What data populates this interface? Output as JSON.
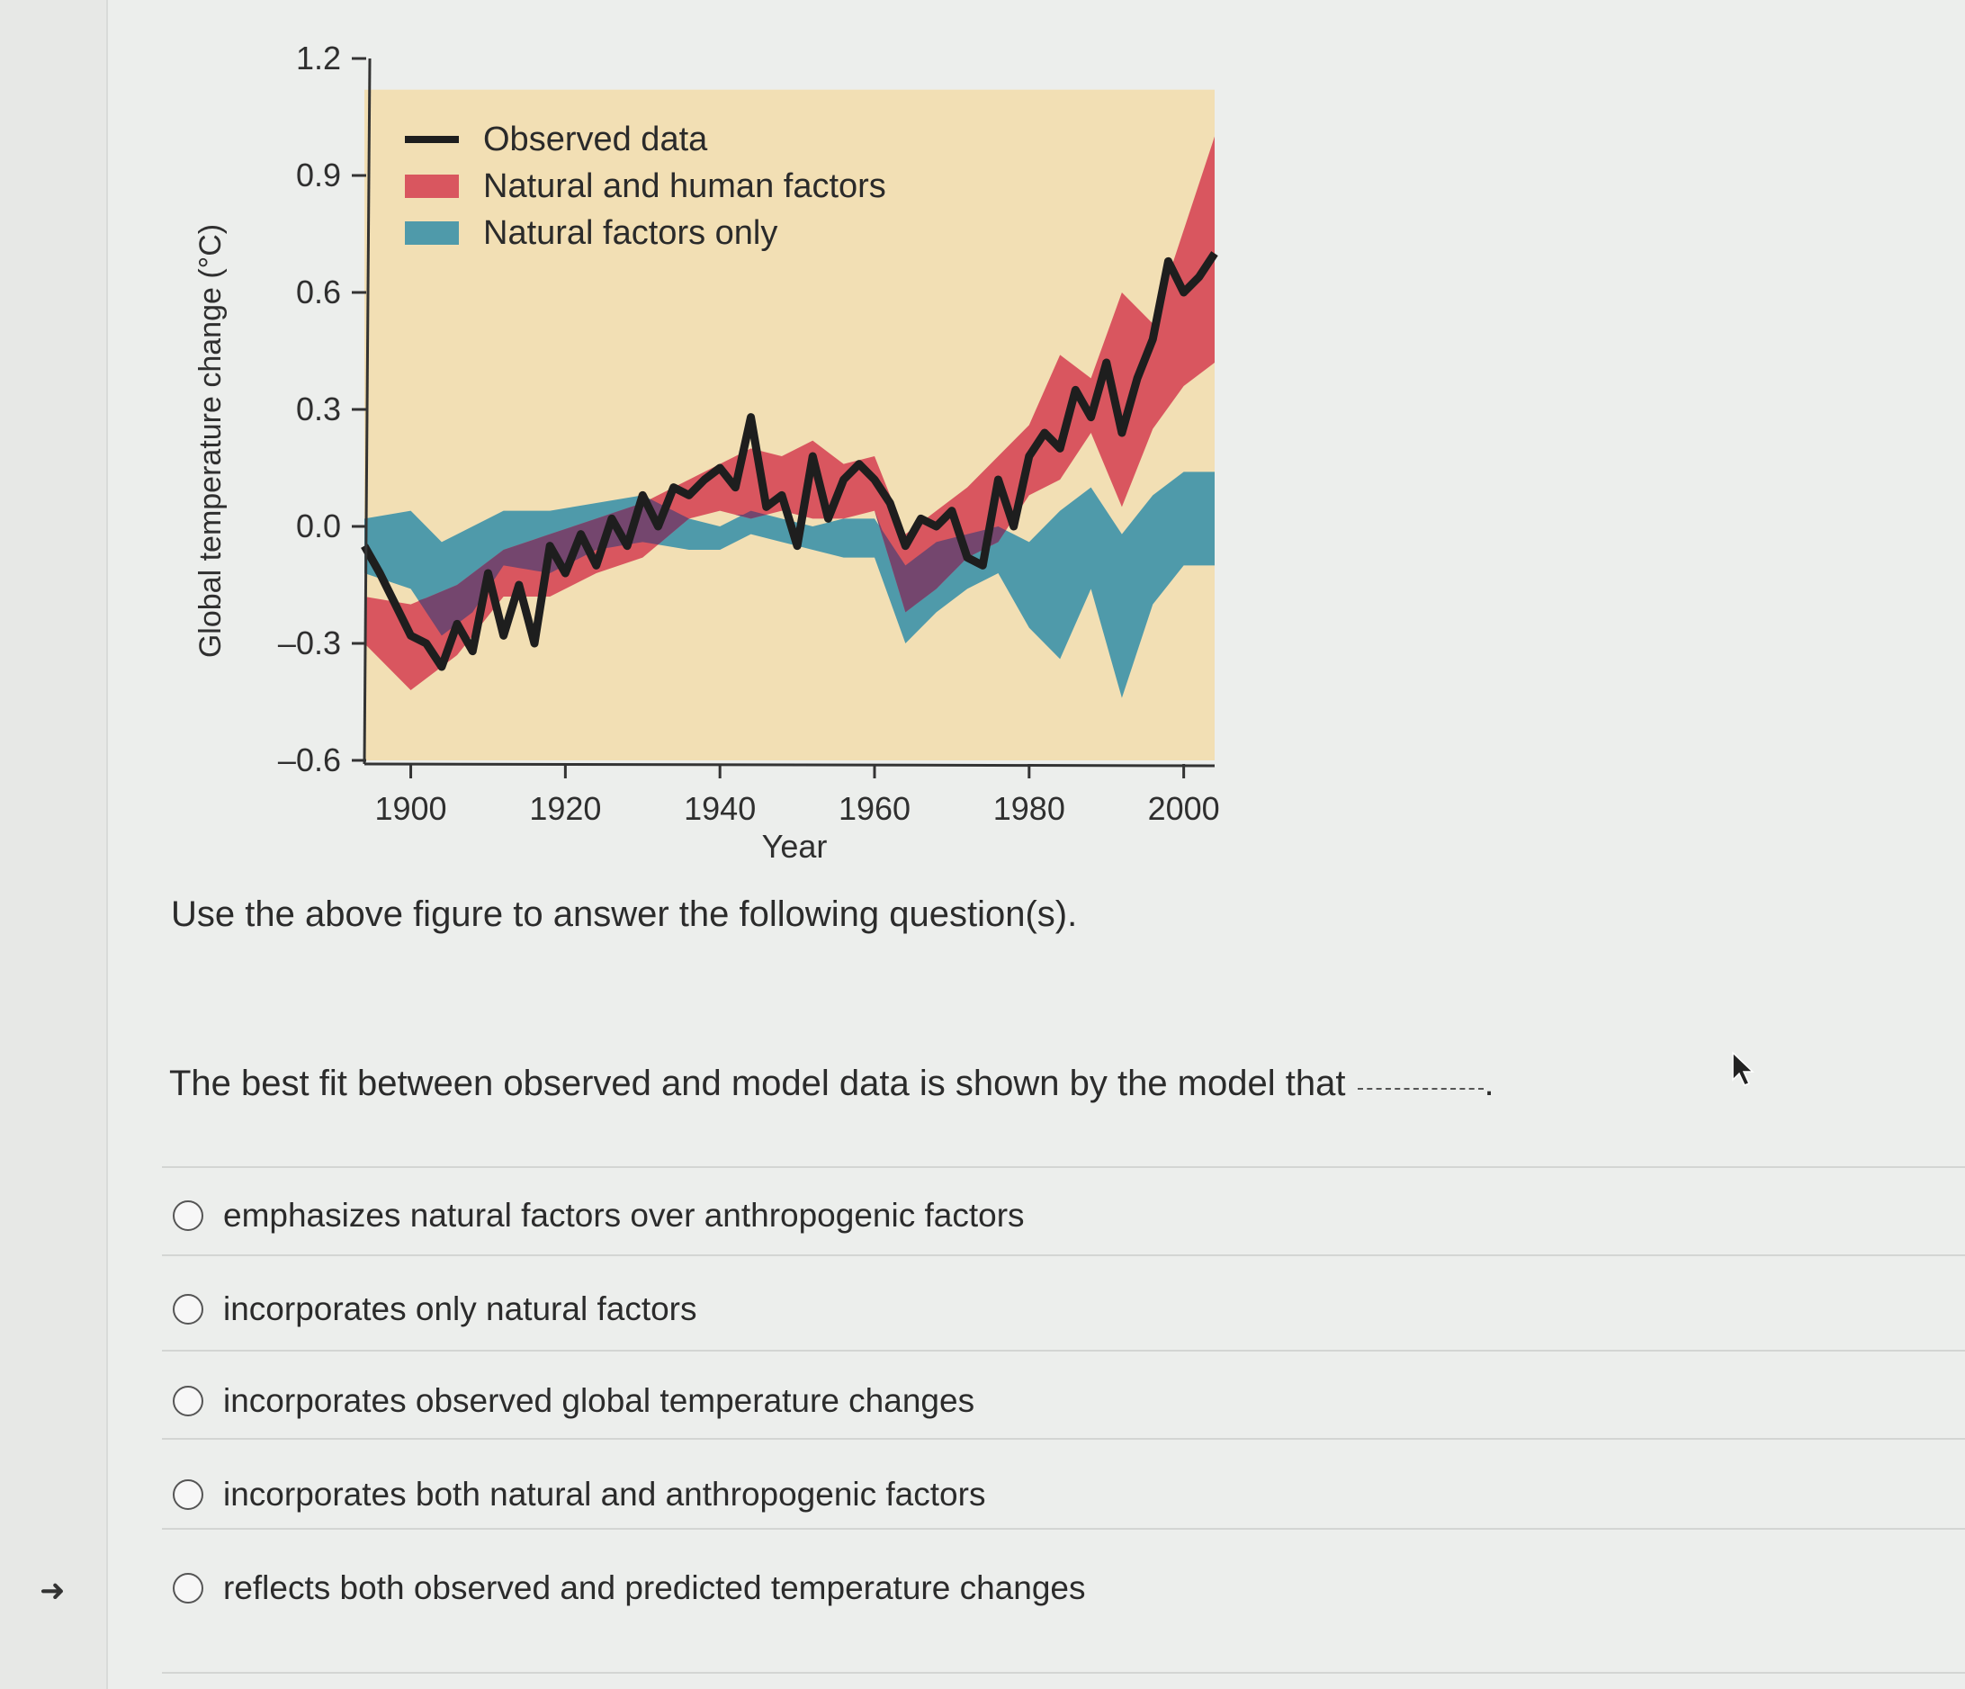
{
  "figure": {
    "chart_data": {
      "type": "line",
      "xlabel": "Year",
      "ylabel": "Global temperature change (°C)",
      "xlim": [
        1894,
        2004
      ],
      "ylim": [
        -0.6,
        1.2
      ],
      "x_ticks": [
        1900,
        1920,
        1940,
        1960,
        1980,
        2000
      ],
      "y_ticks": [
        "1.2",
        "0.9",
        "0.6",
        "0.3",
        "0.0",
        "–0.3",
        "–0.6"
      ],
      "y_tick_values": [
        1.2,
        0.9,
        0.6,
        0.3,
        0.0,
        -0.3,
        -0.6
      ],
      "grid": false,
      "legend_position": "top-left",
      "colors": {
        "observed": "#1e1e1e",
        "natural_human": "#d9565f",
        "natural_only": "#4f9aaa",
        "overlap": "#74466e",
        "plot_background": "#f2dfb4"
      },
      "series": [
        {
          "name": "Observed data",
          "type": "line",
          "x": [
            1894,
            1896,
            1898,
            1900,
            1902,
            1904,
            1906,
            1908,
            1910,
            1912,
            1914,
            1916,
            1918,
            1920,
            1922,
            1924,
            1926,
            1928,
            1930,
            1932,
            1934,
            1936,
            1938,
            1940,
            1942,
            1944,
            1946,
            1948,
            1950,
            1952,
            1954,
            1956,
            1958,
            1960,
            1962,
            1964,
            1966,
            1968,
            1970,
            1972,
            1974,
            1976,
            1978,
            1980,
            1982,
            1984,
            1986,
            1988,
            1990,
            1992,
            1994,
            1996,
            1998,
            2000,
            2002,
            2004
          ],
          "y": [
            -0.05,
            -0.12,
            -0.2,
            -0.28,
            -0.3,
            -0.36,
            -0.25,
            -0.32,
            -0.12,
            -0.28,
            -0.15,
            -0.3,
            -0.05,
            -0.12,
            -0.02,
            -0.1,
            0.02,
            -0.05,
            0.08,
            0.0,
            0.1,
            0.08,
            0.12,
            0.15,
            0.1,
            0.28,
            0.05,
            0.08,
            -0.05,
            0.18,
            0.02,
            0.12,
            0.16,
            0.12,
            0.06,
            -0.05,
            0.02,
            0.0,
            0.04,
            -0.08,
            -0.1,
            0.12,
            0.0,
            0.18,
            0.24,
            0.2,
            0.35,
            0.28,
            0.42,
            0.24,
            0.38,
            0.48,
            0.68,
            0.6,
            0.64,
            0.7
          ]
        },
        {
          "name": "Natural and human factors",
          "type": "band",
          "x": [
            1894,
            1900,
            1906,
            1912,
            1918,
            1924,
            1930,
            1936,
            1940,
            1944,
            1948,
            1952,
            1956,
            1960,
            1964,
            1968,
            1972,
            1976,
            1980,
            1984,
            1988,
            1992,
            1996,
            2000,
            2004
          ],
          "lower": [
            -0.3,
            -0.42,
            -0.33,
            -0.18,
            -0.18,
            -0.12,
            -0.08,
            0.02,
            0.04,
            0.02,
            0.04,
            0.02,
            0.02,
            0.04,
            -0.22,
            -0.16,
            -0.08,
            -0.04,
            0.08,
            0.12,
            0.24,
            0.05,
            0.25,
            0.36,
            0.42
          ],
          "upper": [
            -0.18,
            -0.2,
            -0.15,
            -0.06,
            -0.02,
            0.02,
            0.06,
            0.12,
            0.16,
            0.2,
            0.18,
            0.22,
            0.16,
            0.18,
            -0.02,
            0.04,
            0.1,
            0.18,
            0.26,
            0.44,
            0.38,
            0.6,
            0.52,
            0.76,
            1.0
          ]
        },
        {
          "name": "Natural factors only",
          "type": "band",
          "x": [
            1894,
            1900,
            1904,
            1908,
            1912,
            1918,
            1924,
            1930,
            1936,
            1940,
            1944,
            1948,
            1952,
            1956,
            1960,
            1964,
            1968,
            1972,
            1976,
            1980,
            1984,
            1988,
            1992,
            1996,
            2000,
            2004
          ],
          "lower": [
            -0.12,
            -0.16,
            -0.28,
            -0.22,
            -0.1,
            -0.12,
            -0.06,
            -0.04,
            -0.06,
            -0.06,
            -0.02,
            -0.04,
            -0.06,
            -0.08,
            -0.08,
            -0.3,
            -0.22,
            -0.16,
            -0.12,
            -0.26,
            -0.34,
            -0.16,
            -0.44,
            -0.2,
            -0.1,
            -0.1
          ],
          "upper": [
            0.02,
            0.04,
            -0.04,
            0.0,
            0.04,
            0.04,
            0.06,
            0.08,
            0.02,
            0.0,
            0.04,
            0.02,
            0.0,
            0.02,
            0.02,
            -0.1,
            -0.04,
            -0.02,
            0.0,
            -0.04,
            0.04,
            0.1,
            -0.02,
            0.08,
            0.14,
            0.14
          ]
        }
      ]
    }
  },
  "intro_text": "Use the above figure to answer the following question(s).",
  "question": {
    "text": "The best fit between observed and model data is shown by the model that",
    "options": [
      "emphasizes natural factors over anthropogenic factors",
      "incorporates only natural factors",
      "incorporates observed global temperature changes",
      "incorporates both natural and anthropogenic factors",
      "reflects both observed and predicted temperature changes"
    ]
  },
  "icons": {
    "cursor": "mouse-pointer-icon",
    "left_margin": "arrow-icon"
  }
}
